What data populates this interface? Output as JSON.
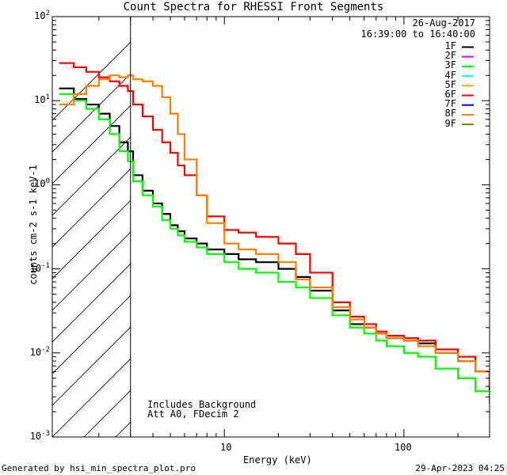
{
  "chart_data": {
    "type": "line",
    "title": "Count Spectra for RHESSI Front Segments",
    "xlabel": "Energy (keV)",
    "ylabel": "counts cm-2 s-1 keV-1",
    "x_scale": "log",
    "y_scale": "log",
    "xlim": [
      1.1,
      300
    ],
    "ylim": [
      0.001,
      100
    ],
    "x_tick_labels": [
      "10",
      "100"
    ],
    "y_tick_labels": [
      "10-3",
      "10-2",
      "10-1",
      "100",
      "101",
      "102"
    ],
    "hatched_below_keV": 3,
    "date": "26-Aug-2017",
    "time_range": "16:39:00 to 16:40:00",
    "annotations": [
      "Includes Background",
      "Att A0, FDecim 2"
    ],
    "footer_left": "Generated by hsi_min_spectra_plot.pro",
    "footer_right": "29-Apr-2023 04:25",
    "legend": [
      {
        "name": "1F",
        "color": "#000000"
      },
      {
        "name": "2F",
        "color": "#ff00ff"
      },
      {
        "name": "3F",
        "color": "#00ff00"
      },
      {
        "name": "4F",
        "color": "#00ffff"
      },
      {
        "name": "5F",
        "color": "#ffa500"
      },
      {
        "name": "6F",
        "color": "#ff0000"
      },
      {
        "name": "7F",
        "color": "#0000ff"
      },
      {
        "name": "8F",
        "color": "#ff8000"
      },
      {
        "name": "9F",
        "color": "#808000"
      }
    ],
    "series": [
      {
        "name": "1F",
        "color": "#000000",
        "x": [
          1.2,
          1.45,
          1.7,
          2.0,
          2.3,
          2.6,
          2.9,
          3.1,
          3.5,
          4.0,
          4.5,
          5.0,
          5.5,
          6.0,
          7.0,
          8.0,
          10,
          12,
          15,
          20,
          25,
          30,
          40,
          50,
          60,
          70,
          80,
          100,
          120,
          150,
          200,
          250,
          300
        ],
        "y": [
          14,
          10.5,
          9,
          7,
          5,
          3.2,
          2.5,
          1.3,
          0.85,
          0.6,
          0.45,
          0.33,
          0.28,
          0.23,
          0.2,
          0.17,
          0.15,
          0.13,
          0.12,
          0.1,
          0.08,
          0.055,
          0.032,
          0.022,
          0.02,
          0.017,
          0.015,
          0.014,
          0.013,
          0.01,
          0.008,
          0.006,
          0.0035
        ]
      },
      {
        "name": "3F",
        "color": "#00ff00",
        "x": [
          1.2,
          1.45,
          1.7,
          2.0,
          2.3,
          2.6,
          2.9,
          3.1,
          3.5,
          4.0,
          4.5,
          5.0,
          5.5,
          6.0,
          7.0,
          8.0,
          10,
          12,
          15,
          20,
          25,
          30,
          40,
          50,
          60,
          70,
          80,
          100,
          120,
          150,
          200,
          250,
          300
        ],
        "y": [
          12,
          10,
          8,
          6,
          4,
          2.5,
          1.9,
          1.1,
          0.75,
          0.55,
          0.38,
          0.3,
          0.25,
          0.21,
          0.18,
          0.15,
          0.12,
          0.1,
          0.09,
          0.07,
          0.06,
          0.045,
          0.028,
          0.02,
          0.017,
          0.014,
          0.012,
          0.01,
          0.009,
          0.0065,
          0.005,
          0.0035,
          0.0025
        ]
      },
      {
        "name": "6F",
        "color": "#ff0000",
        "x": [
          1.2,
          1.45,
          1.7,
          2.0,
          2.3,
          2.6,
          2.9,
          3.1,
          3.5,
          4.0,
          4.5,
          5.0,
          5.5,
          6.0,
          7.0,
          8.0,
          10,
          12,
          15,
          20,
          25,
          30,
          40,
          50,
          60,
          70,
          80,
          100,
          120,
          150,
          200,
          250,
          300
        ],
        "y": [
          28,
          25,
          22,
          19,
          17,
          15,
          13,
          9,
          6.5,
          4.5,
          3.2,
          2.4,
          1.7,
          1.3,
          0.75,
          0.42,
          0.29,
          0.27,
          0.24,
          0.2,
          0.15,
          0.09,
          0.04,
          0.027,
          0.022,
          0.018,
          0.016,
          0.015,
          0.014,
          0.011,
          0.009,
          0.006,
          0.004
        ]
      },
      {
        "name": "8F",
        "color": "#ff8000",
        "x": [
          1.2,
          1.45,
          1.7,
          2.0,
          2.3,
          2.6,
          2.9,
          3.1,
          3.5,
          4.0,
          4.5,
          5.0,
          5.5,
          6.0,
          7.0,
          8.0,
          10,
          12,
          15,
          20,
          25,
          30,
          40,
          50,
          60,
          70,
          80,
          100,
          120,
          150,
          200,
          250,
          300
        ],
        "y": [
          9,
          12,
          15,
          18,
          20,
          19,
          20,
          18,
          17,
          15,
          11,
          7,
          4,
          2,
          0.75,
          0.35,
          0.2,
          0.17,
          0.15,
          0.12,
          0.075,
          0.06,
          0.035,
          0.025,
          0.02,
          0.017,
          0.015,
          0.014,
          0.012,
          0.01,
          0.008,
          0.006,
          0.004
        ]
      }
    ]
  }
}
